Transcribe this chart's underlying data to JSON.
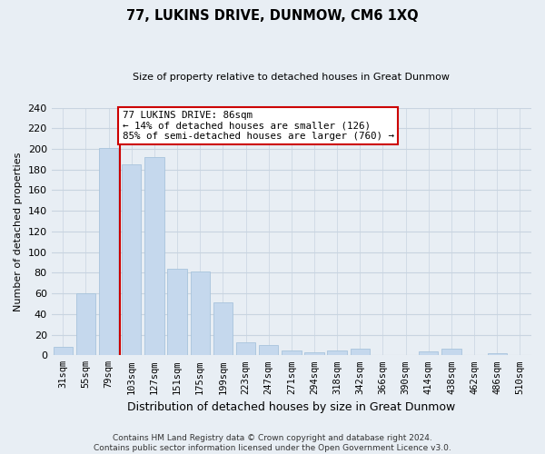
{
  "title": "77, LUKINS DRIVE, DUNMOW, CM6 1XQ",
  "subtitle": "Size of property relative to detached houses in Great Dunmow",
  "xlabel": "Distribution of detached houses by size in Great Dunmow",
  "ylabel": "Number of detached properties",
  "bar_labels": [
    "31sqm",
    "55sqm",
    "79sqm",
    "103sqm",
    "127sqm",
    "151sqm",
    "175sqm",
    "199sqm",
    "223sqm",
    "247sqm",
    "271sqm",
    "294sqm",
    "318sqm",
    "342sqm",
    "366sqm",
    "390sqm",
    "414sqm",
    "438sqm",
    "462sqm",
    "486sqm",
    "510sqm"
  ],
  "bar_values": [
    8,
    60,
    201,
    185,
    192,
    84,
    81,
    51,
    13,
    10,
    5,
    3,
    5,
    6,
    0,
    0,
    4,
    6,
    0,
    2,
    0
  ],
  "bar_color": "#c5d8ed",
  "bar_edge_color": "#a8c4dc",
  "vline_x": 2.5,
  "vline_color": "#cc0000",
  "annotation_text": "77 LUKINS DRIVE: 86sqm\n← 14% of detached houses are smaller (126)\n85% of semi-detached houses are larger (760) →",
  "annotation_box_color": "white",
  "annotation_box_edge": "#cc0000",
  "ylim": [
    0,
    240
  ],
  "yticks": [
    0,
    20,
    40,
    60,
    80,
    100,
    120,
    140,
    160,
    180,
    200,
    220,
    240
  ],
  "footer1": "Contains HM Land Registry data © Crown copyright and database right 2024.",
  "footer2": "Contains public sector information licensed under the Open Government Licence v3.0.",
  "background_color": "#e8eef4",
  "grid_color": "#c8d4e0",
  "title_fontsize": 10.5,
  "subtitle_fontsize": 8,
  "ylabel_fontsize": 8,
  "xlabel_fontsize": 9,
  "tick_fontsize": 7.5,
  "footer_fontsize": 6.5
}
